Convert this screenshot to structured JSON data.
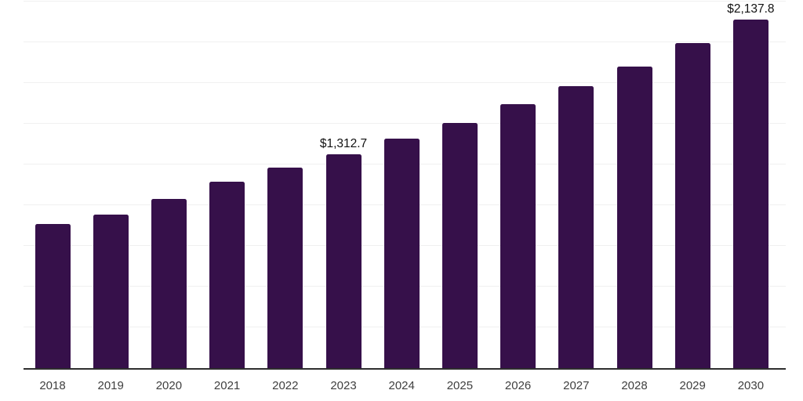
{
  "chart_data": {
    "type": "bar",
    "title": "",
    "xlabel": "",
    "ylabel": "",
    "categories": [
      "2018",
      "2019",
      "2020",
      "2021",
      "2022",
      "2023",
      "2024",
      "2025",
      "2026",
      "2027",
      "2028",
      "2029",
      "2030"
    ],
    "values": [
      885,
      943,
      1038,
      1144,
      1230,
      1312.7,
      1408,
      1506,
      1619,
      1730,
      1852,
      1993,
      2137.8
    ],
    "data_labels": [
      "",
      "",
      "",
      "",
      "",
      "$1,312.7",
      "",
      "",
      "",
      "",
      "",
      "",
      "$2,137.8"
    ],
    "value_prefix": "$",
    "ylim": [
      0,
      2250
    ],
    "gridline_step": 250,
    "grid": true,
    "legend_position": "none",
    "colors": {
      "bar": "#36104A",
      "data_label": "#111111",
      "tick_label": "#3F3F3F",
      "axis_line": "#2E2E2E",
      "gridline": "#F0F0F0",
      "background": "#FFFFFF"
    }
  }
}
